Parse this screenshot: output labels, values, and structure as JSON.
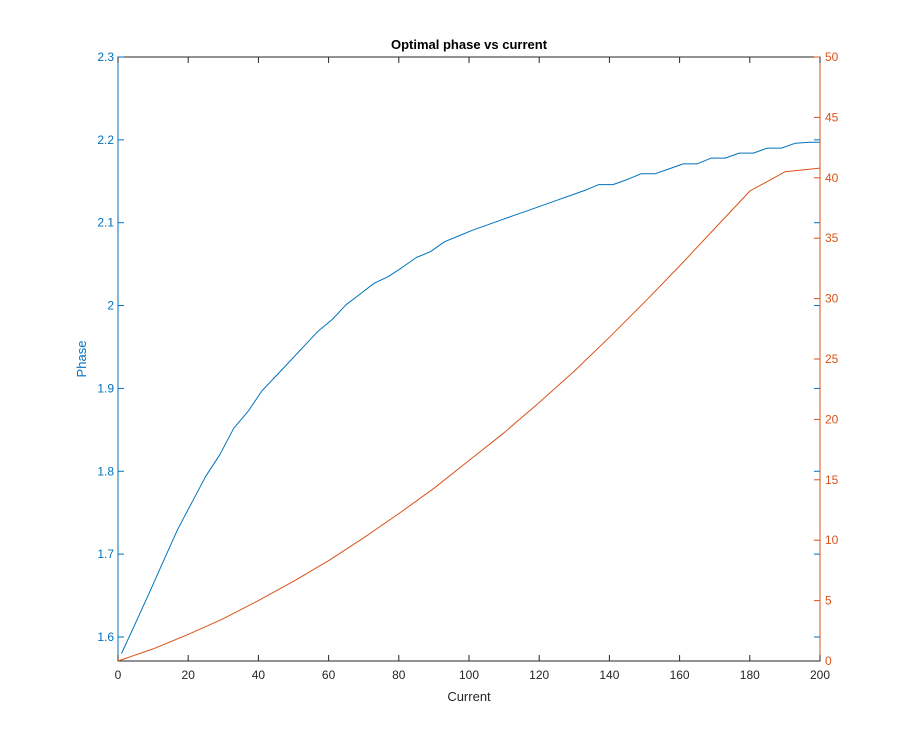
{
  "chart_data": {
    "type": "line",
    "title": "Optimal phase vs current",
    "xlabel": "Current",
    "ylabel_left": "Phase",
    "ylabel_right": "",
    "xlim": [
      0,
      200
    ],
    "ylim_left": [
      1.571,
      2.3
    ],
    "ylim_right": [
      0,
      50
    ],
    "xticks": [
      0,
      20,
      40,
      60,
      80,
      100,
      120,
      140,
      160,
      180,
      200
    ],
    "yticks_left": [
      1.6,
      1.7,
      1.8,
      1.9,
      2,
      2.1,
      2.2,
      2.3
    ],
    "yticks_right": [
      0,
      5,
      10,
      15,
      20,
      25,
      30,
      35,
      40,
      45,
      50
    ],
    "grid": false,
    "legend": "none",
    "colors": {
      "left": "#0072BD",
      "right": "#D95319"
    },
    "series": [
      {
        "axis": "left",
        "x": [
          1,
          5,
          9,
          13,
          17,
          21,
          25,
          29,
          33,
          37,
          41,
          45,
          49,
          53,
          57,
          61,
          65,
          69,
          73,
          77,
          81,
          85,
          89,
          93,
          97,
          101,
          105,
          109,
          113,
          117,
          121,
          125,
          129,
          133,
          137,
          141,
          145,
          149,
          153,
          157,
          161,
          165,
          169,
          173,
          177,
          181,
          185,
          189,
          193,
          197,
          200
        ],
        "values": [
          1.58,
          1.617,
          1.654,
          1.692,
          1.73,
          1.762,
          1.794,
          1.82,
          1.852,
          1.872,
          1.897,
          1.915,
          1.933,
          1.951,
          1.969,
          1.983,
          2.001,
          2.014,
          2.027,
          2.035,
          2.046,
          2.058,
          2.065,
          2.077,
          2.084,
          2.091,
          2.097,
          2.103,
          2.109,
          2.115,
          2.121,
          2.127,
          2.133,
          2.139,
          2.146,
          2.146,
          2.152,
          2.159,
          2.159,
          2.165,
          2.171,
          2.171,
          2.178,
          2.178,
          2.184,
          2.184,
          2.19,
          2.19,
          2.196,
          2.197,
          2.197
        ]
      },
      {
        "axis": "right",
        "x": [
          0,
          10,
          20,
          30,
          40,
          50,
          60,
          70,
          80,
          90,
          100,
          110,
          120,
          130,
          140,
          150,
          160,
          170,
          180,
          190,
          200
        ],
        "values": [
          0,
          1.0,
          2.2,
          3.5,
          5.0,
          6.6,
          8.3,
          10.2,
          12.2,
          14.3,
          16.6,
          18.9,
          21.4,
          24.0,
          26.8,
          29.7,
          32.7,
          35.8,
          38.9,
          40.5,
          40.8
        ]
      }
    ]
  }
}
